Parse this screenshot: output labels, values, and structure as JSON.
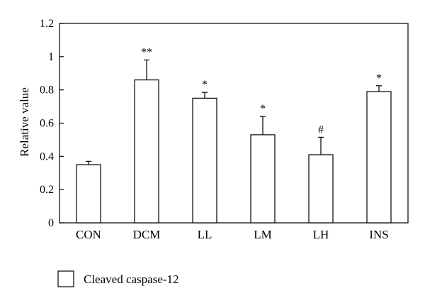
{
  "chart_data": {
    "type": "bar",
    "categories": [
      "CON",
      "DCM",
      "LL",
      "LM",
      "LH",
      "INS"
    ],
    "series": [
      {
        "name": "Cleaved caspase-12",
        "values": [
          0.35,
          0.86,
          0.75,
          0.53,
          0.41,
          0.79
        ],
        "errors": [
          0.02,
          0.12,
          0.035,
          0.11,
          0.105,
          0.035
        ]
      }
    ],
    "annotations": [
      "",
      "**",
      "*",
      "*",
      "#",
      "*"
    ],
    "xlabel": "",
    "ylabel": "Relative value",
    "ylim": [
      0,
      1.2
    ],
    "yticks": [
      0,
      0.2,
      0.4,
      0.6,
      0.8,
      1,
      1.2
    ],
    "ytick_labels": [
      "0",
      "0.2",
      "0.4",
      "0.6",
      "0.8",
      "1",
      "1.2"
    ],
    "grid": false,
    "legend": {
      "label": "Cleaved caspase-12",
      "position": "bottom-left"
    },
    "colors": {
      "bar_fill": "#ffffff",
      "bar_stroke": "#000000"
    }
  }
}
